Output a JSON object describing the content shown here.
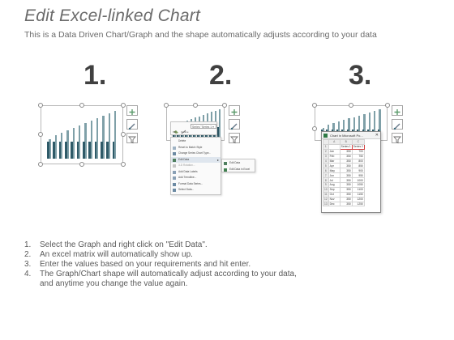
{
  "header": {
    "title": "Edit Excel-linked Chart",
    "subtitle": "This is a Data Driven Chart/Graph and the shape automatically adjusts according to your data"
  },
  "steps": [
    {
      "number": "1."
    },
    {
      "number": "2."
    },
    {
      "number": "3."
    }
  ],
  "mini_chart": {
    "light_values": [
      4,
      5,
      5.5,
      6,
      6.5,
      7,
      7.5,
      8,
      8.5,
      9,
      9.5,
      10
    ],
    "dark_values": [
      3.5,
      3.5,
      3.5,
      3.5,
      3.5,
      3.5,
      3.5,
      3.5,
      3.5,
      3.5,
      3.5,
      3.5
    ],
    "light_color": "#7fa0a8",
    "dark_color": "#2e5a68"
  },
  "context_menu": {
    "series_dropdown": "Series \"Series 1 ▾",
    "mini_toolbar": [
      "Fill",
      "Outline"
    ],
    "items": [
      "Delete",
      "Reset to Match Style",
      "Change Series Chart Type...",
      "Edit Data",
      "3-D Rotation...",
      "Add Data Labels",
      "Add Trendline...",
      "Format Data Series...",
      "Select Data..."
    ],
    "submenu": [
      "Edit Data",
      "Edit Data in Excel"
    ]
  },
  "excel_popup": {
    "title": "Chart in Microsoft Po...",
    "columns": [
      "A",
      "B",
      "C"
    ],
    "headers": [
      "",
      "Series 1",
      "Series 2"
    ],
    "rows": [
      [
        "Jan",
        "350",
        "700"
      ],
      [
        "Feb",
        "350",
        "750"
      ],
      [
        "Mar",
        "350",
        "800"
      ],
      [
        "Apr",
        "350",
        "850"
      ],
      [
        "May",
        "350",
        "900"
      ],
      [
        "Jun",
        "350",
        "950"
      ],
      [
        "Jul",
        "350",
        "1000"
      ],
      [
        "Aug",
        "350",
        "1050"
      ],
      [
        "Sep",
        "350",
        "1100"
      ],
      [
        "Oct",
        "350",
        "1150"
      ],
      [
        "Nov",
        "350",
        "1200"
      ],
      [
        "Dec",
        "350",
        "1250"
      ]
    ]
  },
  "instructions": [
    {
      "num": "1.",
      "text": "Select the Graph and right click on \"Edit Data\"."
    },
    {
      "num": "2.",
      "text": "An excel matrix will automatically show up."
    },
    {
      "num": "3.",
      "text": "Enter the values based on your requirements and hit enter."
    },
    {
      "num": "4.",
      "text": "The Graph/Chart shape will automatically adjust according to your data,"
    },
    {
      "num": "",
      "text": "and anytime you change the value again."
    }
  ]
}
